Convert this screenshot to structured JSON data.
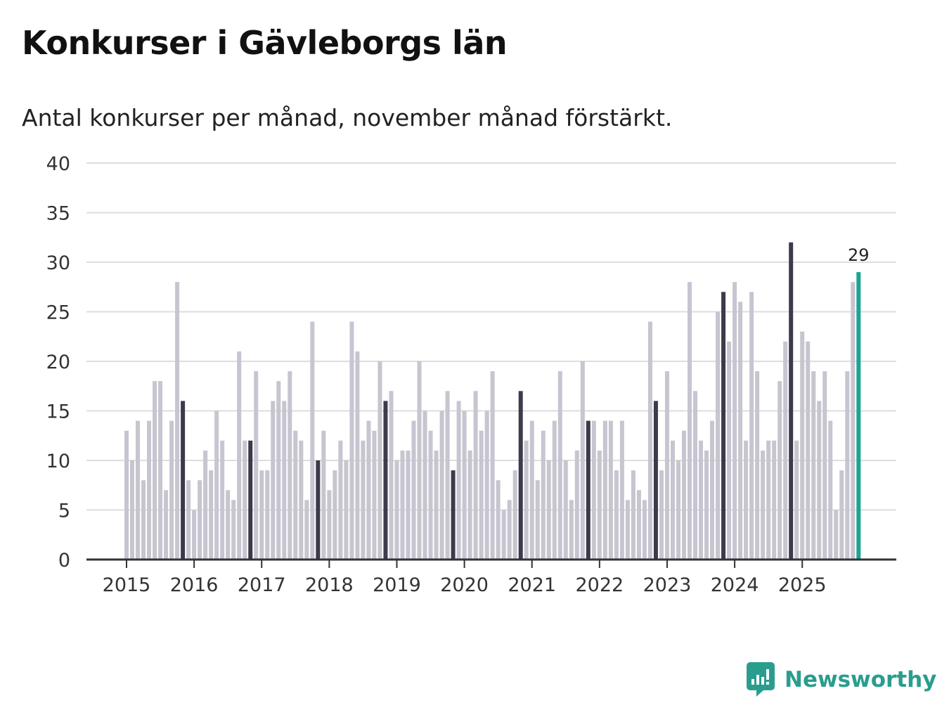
{
  "chart_data": {
    "type": "bar",
    "title": "Konkurser i Gävleborgs län",
    "subtitle": "Antal konkurser per månad, november månad förstärkt.",
    "xlabel": "",
    "ylabel": "",
    "ylim": [
      0,
      40
    ],
    "yticks": [
      "0",
      "5",
      "10",
      "15",
      "20",
      "25",
      "30",
      "35",
      "40"
    ],
    "xticks": [
      "2015",
      "2016",
      "2017",
      "2018",
      "2019",
      "2020",
      "2021",
      "2022",
      "2023",
      "2024",
      "2025"
    ],
    "start_year": 2015,
    "grid": true,
    "legend": "none",
    "highlight_month": 11,
    "annotation": {
      "label": "29",
      "year": 2025,
      "month": 11
    },
    "colors": {
      "bar": "#c6c5d0",
      "november": "#3b3b4c",
      "latest": "#1aa492",
      "grid": "#dedede",
      "axis": "#333333"
    },
    "values": [
      13,
      10,
      14,
      8,
      14,
      18,
      18,
      7,
      14,
      28,
      16,
      8,
      5,
      8,
      11,
      9,
      15,
      12,
      7,
      6,
      21,
      12,
      12,
      19,
      9,
      9,
      16,
      18,
      16,
      19,
      13,
      12,
      6,
      24,
      10,
      13,
      7,
      9,
      12,
      10,
      24,
      21,
      12,
      14,
      13,
      20,
      16,
      17,
      10,
      11,
      11,
      14,
      20,
      15,
      13,
      11,
      15,
      17,
      9,
      16,
      15,
      11,
      17,
      13,
      15,
      19,
      8,
      5,
      6,
      9,
      17,
      12,
      14,
      8,
      13,
      10,
      14,
      19,
      10,
      6,
      11,
      20,
      14,
      14,
      11,
      14,
      14,
      9,
      14,
      6,
      9,
      7,
      6,
      24,
      16,
      9,
      19,
      12,
      10,
      13,
      28,
      17,
      12,
      11,
      14,
      25,
      27,
      22,
      28,
      26,
      12,
      27,
      19,
      11,
      12,
      12,
      18,
      22,
      32,
      12,
      23,
      22,
      19,
      16,
      19,
      14,
      5,
      9,
      19,
      28,
      29
    ]
  },
  "brand": {
    "name": "Newsworthy",
    "icon": "newsworthy-logo-icon",
    "color": "#2a9d8f"
  }
}
